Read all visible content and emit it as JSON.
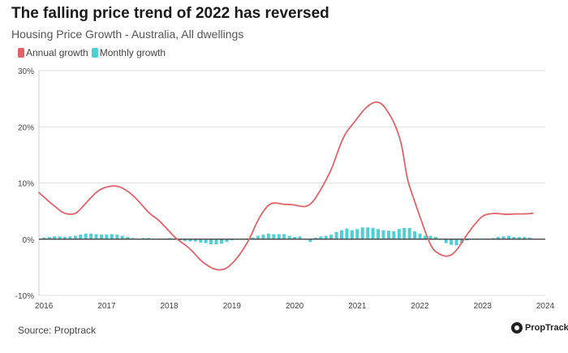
{
  "header": {
    "title": "The falling price trend of 2022 has reversed",
    "subtitle": "Housing Price Growth - Australia, All dwellings"
  },
  "legend": {
    "annual_label": "Annual growth",
    "monthly_label": "Monthly growth"
  },
  "footer": {
    "source": "Source: Proptrack",
    "brand": "PropTrack"
  },
  "colors": {
    "annual": "#e06467",
    "monthly": "#4ecfd5",
    "grid": "#e2e2e2",
    "axis": "#333333"
  },
  "chart_data": {
    "type": "line",
    "title": "The falling price trend of 2022 has reversed",
    "subtitle": "Housing Price Growth - Australia, All dwellings",
    "xlabel": "",
    "ylabel": "",
    "ylim": [
      -10,
      30
    ],
    "xlim": [
      2015.92,
      2024.0
    ],
    "yticks": [
      -10,
      0,
      10,
      20,
      30
    ],
    "ytick_labels": [
      "-10%",
      "0%",
      "10%",
      "20%",
      "30%"
    ],
    "xticks": [
      2016,
      2017,
      2018,
      2019,
      2020,
      2021,
      2022,
      2023,
      2024
    ],
    "xtick_labels": [
      "2016",
      "2017",
      "2018",
      "2019",
      "2020",
      "2021",
      "2022",
      "2023",
      "2024"
    ],
    "grid": "horizontal",
    "legend_position": "top-left",
    "series": [
      {
        "name": "Annual growth",
        "kind": "line",
        "x": [
          2015.92,
          2016.0,
          2016.1,
          2016.2,
          2016.3,
          2016.4,
          2016.5,
          2016.58,
          2016.7,
          2016.8,
          2016.9,
          2017.0,
          2017.1,
          2017.2,
          2017.3,
          2017.4,
          2017.5,
          2017.6,
          2017.7,
          2017.8,
          2017.9,
          2018.0,
          2018.1,
          2018.2,
          2018.3,
          2018.4,
          2018.5,
          2018.6,
          2018.7,
          2018.8,
          2018.9,
          2019.0,
          2019.1,
          2019.2,
          2019.3,
          2019.4,
          2019.5,
          2019.6,
          2019.7,
          2019.8,
          2019.9,
          2020.0,
          2020.1,
          2020.2,
          2020.3,
          2020.4,
          2020.5,
          2020.6,
          2020.7,
          2020.8,
          2020.9,
          2021.0,
          2021.1,
          2021.2,
          2021.3,
          2021.4,
          2021.5,
          2021.6,
          2021.7,
          2021.75,
          2021.8,
          2021.9,
          2022.0,
          2022.1,
          2022.2,
          2022.3,
          2022.4,
          2022.5,
          2022.6,
          2022.7,
          2022.8,
          2022.9,
          2023.0,
          2023.1,
          2023.2,
          2023.3,
          2023.4,
          2023.5,
          2023.6,
          2023.7,
          2023.8
        ],
        "y": [
          8.3,
          7.5,
          6.5,
          5.6,
          4.7,
          4.4,
          4.5,
          5.3,
          6.8,
          8.0,
          8.9,
          9.3,
          9.5,
          9.4,
          8.8,
          8.0,
          6.9,
          5.6,
          4.4,
          3.7,
          2.6,
          1.4,
          0.2,
          -0.6,
          -1.4,
          -2.5,
          -3.8,
          -4.6,
          -5.3,
          -5.5,
          -5.3,
          -4.4,
          -3.1,
          -1.5,
          0.5,
          3.1,
          5.0,
          6.3,
          6.5,
          6.2,
          6.2,
          6.1,
          5.8,
          5.8,
          6.7,
          8.5,
          10.5,
          12.7,
          16.0,
          18.7,
          20.1,
          21.5,
          23.0,
          24.0,
          24.5,
          24.1,
          22.5,
          20.5,
          17.3,
          14.0,
          10.5,
          7.2,
          4.0,
          0.8,
          -1.8,
          -2.6,
          -3.1,
          -2.9,
          -1.8,
          0.0,
          1.6,
          3.0,
          4.2,
          4.5,
          4.6,
          4.5,
          4.4,
          4.5,
          4.5,
          4.5,
          4.6
        ],
        "color": "#e06467"
      },
      {
        "name": "Monthly growth",
        "kind": "bar",
        "x": [
          2016.0,
          2016.083,
          2016.167,
          2016.25,
          2016.333,
          2016.417,
          2016.5,
          2016.583,
          2016.667,
          2016.75,
          2016.833,
          2016.917,
          2017.0,
          2017.083,
          2017.167,
          2017.25,
          2017.333,
          2017.417,
          2017.5,
          2017.583,
          2017.667,
          2017.75,
          2017.833,
          2017.917,
          2018.0,
          2018.083,
          2018.167,
          2018.25,
          2018.333,
          2018.417,
          2018.5,
          2018.583,
          2018.667,
          2018.75,
          2018.833,
          2018.917,
          2019.0,
          2019.083,
          2019.167,
          2019.25,
          2019.333,
          2019.417,
          2019.5,
          2019.583,
          2019.667,
          2019.75,
          2019.833,
          2019.917,
          2020.0,
          2020.083,
          2020.167,
          2020.25,
          2020.333,
          2020.417,
          2020.5,
          2020.583,
          2020.667,
          2020.75,
          2020.833,
          2020.917,
          2021.0,
          2021.083,
          2021.167,
          2021.25,
          2021.333,
          2021.417,
          2021.5,
          2021.583,
          2021.667,
          2021.75,
          2021.833,
          2021.917,
          2022.0,
          2022.083,
          2022.167,
          2022.25,
          2022.333,
          2022.417,
          2022.5,
          2022.583,
          2022.667,
          2022.75,
          2022.833,
          2022.917,
          2023.0,
          2023.083,
          2023.167,
          2023.25,
          2023.333,
          2023.417,
          2023.5,
          2023.583,
          2023.667,
          2023.75
        ],
        "y": [
          0.3,
          0.4,
          0.5,
          0.5,
          0.4,
          0.5,
          0.6,
          0.8,
          1.0,
          1.0,
          0.9,
          0.8,
          0.8,
          0.9,
          0.8,
          0.6,
          0.4,
          0.2,
          0.0,
          0.2,
          0.2,
          0.1,
          -0.1,
          0.0,
          0.2,
          0.0,
          -0.2,
          -0.3,
          -0.4,
          -0.4,
          -0.6,
          -0.7,
          -0.9,
          -0.9,
          -0.8,
          -0.5,
          -0.2,
          -0.1,
          0.0,
          0.1,
          0.3,
          0.6,
          0.8,
          1.0,
          0.9,
          0.9,
          0.9,
          0.6,
          0.4,
          0.5,
          0.0,
          -0.5,
          0.3,
          0.5,
          0.6,
          0.8,
          1.3,
          1.6,
          1.9,
          1.6,
          1.8,
          2.1,
          2.1,
          2.0,
          1.8,
          1.6,
          1.5,
          1.4,
          1.8,
          2.0,
          2.0,
          1.4,
          1.0,
          0.6,
          0.6,
          0.4,
          0.0,
          -0.7,
          -1.0,
          -1.1,
          -0.7,
          -0.2,
          0.0,
          0.0,
          0.0,
          0.1,
          0.2,
          0.4,
          0.5,
          0.6,
          0.4,
          0.4,
          0.4,
          0.3
        ],
        "color": "#4ecfd5"
      }
    ]
  }
}
